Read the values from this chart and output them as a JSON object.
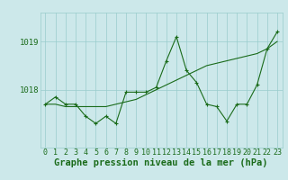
{
  "hours": [
    0,
    1,
    2,
    3,
    4,
    5,
    6,
    7,
    8,
    9,
    10,
    11,
    12,
    13,
    14,
    15,
    16,
    17,
    18,
    19,
    20,
    21,
    22,
    23
  ],
  "pressure_actual": [
    1017.7,
    1017.85,
    1017.7,
    1017.7,
    1017.45,
    1017.3,
    1017.45,
    1017.3,
    1017.95,
    1017.95,
    1017.95,
    1018.05,
    1018.6,
    1019.1,
    1018.4,
    1018.15,
    1017.7,
    1017.65,
    1017.35,
    1017.7,
    1017.7,
    1018.1,
    1018.85,
    1019.2
  ],
  "pressure_trend": [
    1017.7,
    1017.7,
    1017.65,
    1017.65,
    1017.65,
    1017.65,
    1017.65,
    1017.7,
    1017.75,
    1017.8,
    1017.9,
    1018.0,
    1018.1,
    1018.2,
    1018.3,
    1018.4,
    1018.5,
    1018.55,
    1018.6,
    1018.65,
    1018.7,
    1018.75,
    1018.85,
    1019.0
  ],
  "line_color": "#1a6b1a",
  "bg_color": "#cce8ea",
  "grid_color": "#99cccc",
  "ylabel_ticks": [
    1018,
    1019
  ],
  "ylim": [
    1016.8,
    1019.6
  ],
  "xlabel": "Graphe pression niveau de la mer (hPa)",
  "xlabel_fontsize": 7.5,
  "tick_fontsize": 6.5
}
